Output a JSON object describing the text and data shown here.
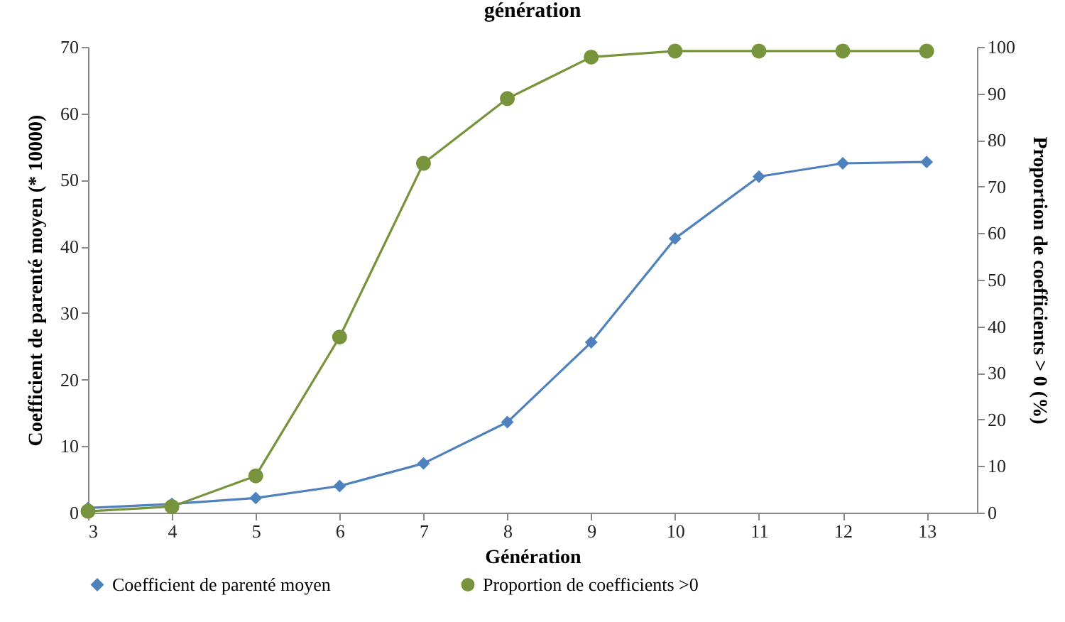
{
  "chart_data": {
    "type": "line",
    "title": "génération",
    "xlabel": "Génération",
    "ylabel": "Coefficient de parenté moyen (* 10000)",
    "y2label": "Proportion de coefficients > 0 (%)",
    "x": [
      3,
      4,
      5,
      6,
      7,
      8,
      9,
      10,
      11,
      12,
      13
    ],
    "xlim": [
      3,
      13.6
    ],
    "xticks": [
      3,
      4,
      5,
      6,
      7,
      8,
      9,
      10,
      11,
      12,
      13
    ],
    "ylim": [
      0,
      70
    ],
    "yticks": [
      0,
      10,
      20,
      30,
      40,
      50,
      60,
      70
    ],
    "y2lim": [
      0,
      100
    ],
    "y2ticks": [
      0,
      10,
      20,
      30,
      40,
      50,
      60,
      70,
      80,
      90,
      100
    ],
    "series": [
      {
        "name": "Coefficient de parenté moyen",
        "color": "#4f81bd",
        "marker": "diamond",
        "values": [
          0.7,
          1.3,
          2.2,
          4.0,
          7.4,
          13.6,
          25.6,
          41.2,
          50.5,
          52.5,
          52.7
        ]
      },
      {
        "name": "Proportion de coefficients >0",
        "color": "#77933c",
        "marker": "circle",
        "axis": "y2",
        "values": [
          0.3,
          1.3,
          7.9,
          37.7,
          75.0,
          88.9,
          97.8,
          99.1,
          99.1,
          99.1,
          99.1
        ]
      }
    ],
    "grid": false,
    "legend": "bottom"
  }
}
